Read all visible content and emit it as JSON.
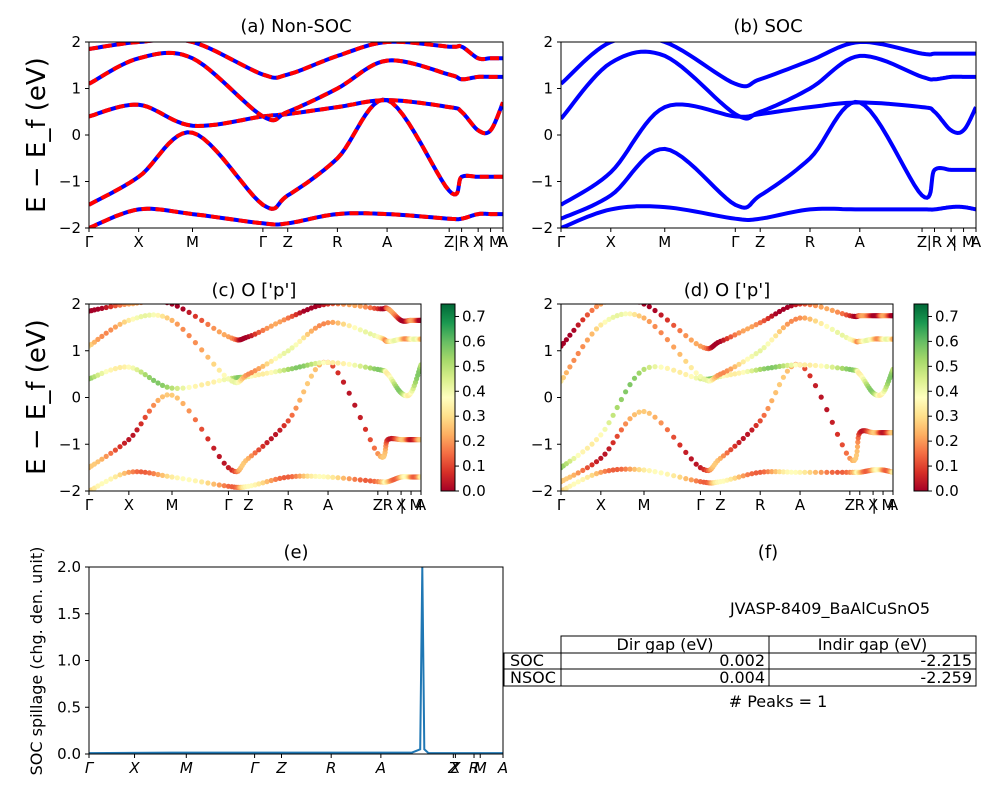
{
  "figure": {
    "ylabel_band": "E − E_f (eV)",
    "panels": {
      "a": {
        "title": "(a) Non-SOC"
      },
      "b": {
        "title": "(b) SOC"
      },
      "c": {
        "title": "(c)  O ['p']"
      },
      "d": {
        "title": "(d) O ['p']"
      },
      "e": {
        "title": "(e)",
        "ylabel": "SOC spillage (chg. den. unit)"
      },
      "f": {
        "title": "(f)",
        "material": "JVASP-8409_BaAlCuSnO5",
        "peaks_text": "# Peaks = 1"
      }
    },
    "kpath_labels_ab": [
      "Γ",
      "X",
      "M",
      "Γ",
      "Z",
      "R",
      "A",
      "Z",
      "|R",
      "X",
      "| M",
      "A"
    ],
    "kpath_labels_cd": [
      "Γ",
      "X",
      "M",
      "Γ",
      "Z",
      "R",
      "A",
      "Z",
      "R",
      "X",
      "| M",
      "A"
    ],
    "kpath_labels_e": [
      "Γ",
      "X",
      "M",
      "Γ",
      "Z",
      "R",
      "A",
      "X",
      "Z",
      "R",
      "M",
      "A"
    ],
    "table": {
      "headers": [
        "",
        "Dir gap (eV)",
        "Indir gap (eV)"
      ],
      "rows": [
        [
          "SOC",
          "0.002",
          "-2.215"
        ],
        [
          "NSOC",
          "0.004",
          "-2.259"
        ]
      ]
    },
    "colors": {
      "non_soc_red": "#ff0000",
      "non_soc_blue": "#0000ff",
      "soc_blue": "#0000ff",
      "spillage_line": "#1f77b4"
    }
  },
  "chart_data": [
    {
      "type": "line",
      "panel": "a",
      "title": "(a) Non-SOC",
      "ylabel": "E − E_f (eV)",
      "ylim": [
        -2,
        2
      ],
      "yticks": [
        -2,
        -1,
        0,
        1,
        2
      ],
      "xlim": [
        0,
        1
      ],
      "x": [
        0.0,
        0.12,
        0.25,
        0.42,
        0.48,
        0.6,
        0.72,
        0.87,
        0.9,
        0.94,
        0.97,
        1.0
      ],
      "series": [
        {
          "values": [
            -2.0,
            -1.6,
            -1.7,
            -1.9,
            -1.9,
            -1.7,
            -1.7,
            -1.8,
            -1.8,
            -1.7,
            -1.7,
            -1.7
          ]
        },
        {
          "values": [
            -1.5,
            -0.9,
            0.05,
            -1.5,
            -1.3,
            -0.5,
            0.75,
            -1.2,
            -0.9,
            -0.9,
            -0.9,
            -0.9
          ]
        },
        {
          "values": [
            0.4,
            0.65,
            0.2,
            0.4,
            0.45,
            0.6,
            0.75,
            0.6,
            0.5,
            0.1,
            0.1,
            0.7
          ]
        },
        {
          "values": [
            1.1,
            1.65,
            1.65,
            0.4,
            0.5,
            1.0,
            1.6,
            1.3,
            1.2,
            1.25,
            1.25,
            1.25
          ]
        },
        {
          "values": [
            1.85,
            2.0,
            2.0,
            1.3,
            1.3,
            1.7,
            2.0,
            1.9,
            1.9,
            1.65,
            1.65,
            1.65
          ]
        }
      ]
    },
    {
      "type": "line",
      "panel": "b",
      "title": "(b) SOC",
      "ylim": [
        -2,
        2
      ],
      "yticks": [
        -2,
        -1,
        0,
        1,
        2
      ],
      "xlim": [
        0,
        1
      ],
      "x": [
        0.0,
        0.12,
        0.25,
        0.42,
        0.48,
        0.6,
        0.72,
        0.87,
        0.9,
        0.94,
        0.97,
        1.0
      ],
      "series": [
        {
          "values": [
            -2.0,
            -1.6,
            -1.55,
            -1.8,
            -1.8,
            -1.6,
            -1.6,
            -1.6,
            -1.6,
            -1.55,
            -1.55,
            -1.6
          ]
        },
        {
          "values": [
            -1.8,
            -1.3,
            -0.3,
            -1.5,
            -1.3,
            -0.5,
            0.7,
            -1.3,
            -0.75,
            -0.75,
            -0.75,
            -0.75
          ]
        },
        {
          "values": [
            -1.5,
            -0.8,
            0.6,
            0.4,
            0.45,
            0.6,
            0.7,
            0.6,
            0.5,
            0.1,
            0.1,
            0.6
          ]
        },
        {
          "values": [
            0.35,
            1.55,
            1.7,
            0.45,
            0.5,
            1.0,
            1.7,
            1.25,
            1.2,
            1.25,
            1.25,
            1.25
          ]
        },
        {
          "values": [
            1.1,
            2.0,
            2.0,
            1.1,
            1.2,
            1.6,
            2.0,
            1.75,
            1.75,
            1.75,
            1.75,
            1.75
          ]
        }
      ]
    },
    {
      "type": "scatter",
      "panel": "c",
      "title": "(c)  O ['p']",
      "ylabel": "E − E_f (eV)",
      "ylim": [
        -2,
        2
      ],
      "yticks": [
        -2,
        -1,
        0,
        1,
        2
      ],
      "colorbar": {
        "min": 0.0,
        "max": 0.75,
        "ticks": [
          0.0,
          0.1,
          0.2,
          0.3,
          0.4,
          0.5,
          0.6,
          0.7
        ],
        "colormap": "RdYlGn"
      },
      "bands": [
        {
          "weight": 0.25,
          "values": [
            -2.0,
            -1.6,
            -1.7,
            -1.9,
            -1.9,
            -1.7,
            -1.7,
            -1.8,
            -1.8,
            -1.7,
            -1.7,
            -1.7
          ]
        },
        {
          "weight": 0.15,
          "values": [
            -1.5,
            -0.9,
            0.05,
            -1.5,
            -1.3,
            -0.5,
            0.75,
            -1.2,
            -0.9,
            -0.9,
            -0.9,
            -0.9
          ]
        },
        {
          "weight": 0.45,
          "values": [
            0.4,
            0.65,
            0.2,
            0.4,
            0.45,
            0.6,
            0.75,
            0.6,
            0.5,
            0.1,
            0.1,
            0.7
          ]
        },
        {
          "weight": 0.3,
          "values": [
            1.1,
            1.65,
            1.65,
            0.4,
            0.5,
            1.0,
            1.6,
            1.3,
            1.2,
            1.25,
            1.25,
            1.25
          ]
        },
        {
          "weight": 0.1,
          "values": [
            1.85,
            2.0,
            2.0,
            1.3,
            1.3,
            1.7,
            2.0,
            1.9,
            1.9,
            1.65,
            1.65,
            1.65
          ]
        }
      ]
    },
    {
      "type": "scatter",
      "panel": "d",
      "title": "(d) O ['p']",
      "ylim": [
        -2,
        2
      ],
      "yticks": [
        -2,
        -1,
        0,
        1,
        2
      ],
      "colorbar": {
        "min": 0.0,
        "max": 0.75,
        "ticks": [
          0.0,
          0.1,
          0.2,
          0.3,
          0.4,
          0.5,
          0.6,
          0.7
        ],
        "colormap": "RdYlGn"
      },
      "bands": [
        {
          "weight": 0.25,
          "values": [
            -2.0,
            -1.6,
            -1.55,
            -1.8,
            -1.8,
            -1.6,
            -1.6,
            -1.6,
            -1.6,
            -1.55,
            -1.55,
            -1.6
          ]
        },
        {
          "weight": 0.15,
          "values": [
            -1.8,
            -1.3,
            -0.3,
            -1.5,
            -1.3,
            -0.5,
            0.7,
            -1.3,
            -0.75,
            -0.75,
            -0.75,
            -0.75
          ]
        },
        {
          "weight": 0.45,
          "values": [
            -1.5,
            -0.8,
            0.6,
            0.4,
            0.45,
            0.6,
            0.7,
            0.6,
            0.5,
            0.1,
            0.1,
            0.6
          ]
        },
        {
          "weight": 0.3,
          "values": [
            0.35,
            1.55,
            1.7,
            0.45,
            0.5,
            1.0,
            1.7,
            1.25,
            1.2,
            1.25,
            1.25,
            1.25
          ]
        },
        {
          "weight": 0.1,
          "values": [
            1.1,
            2.0,
            2.0,
            1.1,
            1.2,
            1.6,
            2.0,
            1.75,
            1.75,
            1.75,
            1.75,
            1.75
          ]
        }
      ]
    },
    {
      "type": "line",
      "panel": "e",
      "title": "(e)",
      "ylabel": "SOC spillage (chg. den. unit)",
      "ylim": [
        0,
        2.0
      ],
      "yticks": [
        0.0,
        0.5,
        1.0,
        1.5,
        2.0
      ],
      "x": [
        0.0,
        0.2,
        0.4,
        0.6,
        0.78,
        0.8,
        0.805,
        0.81,
        0.82,
        0.85,
        1.0
      ],
      "values": [
        0.01,
        0.015,
        0.015,
        0.015,
        0.015,
        0.05,
        2.0,
        0.05,
        0.01,
        0.01,
        0.01
      ]
    }
  ]
}
